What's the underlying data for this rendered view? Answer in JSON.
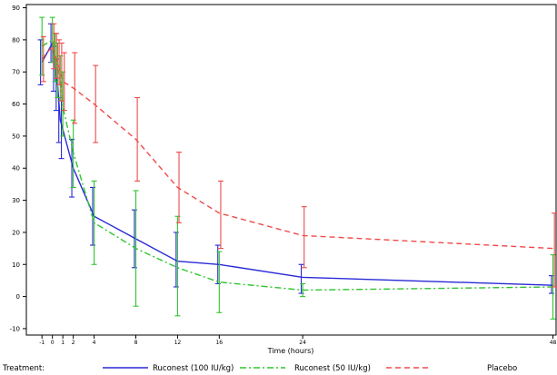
{
  "chart_data": {
    "type": "line",
    "title": "",
    "xlabel": "Time (hours)",
    "ylabel": "",
    "xlim": [
      -2.5,
      48.3
    ],
    "ylim": [
      -12,
      91
    ],
    "x_ticks": [
      -1,
      0,
      1,
      2,
      4,
      8,
      12,
      16,
      24,
      48
    ],
    "x_tick_labels": [
      "-1",
      "0",
      "1",
      "2",
      "4",
      "8",
      "12",
      "16",
      "24",
      "48"
    ],
    "y_ticks": [
      -10,
      0,
      10,
      20,
      30,
      40,
      50,
      60,
      70,
      80,
      90
    ],
    "y_tick_labels": [
      "-10",
      "0",
      "10",
      "20",
      "30",
      "40",
      "50",
      "60",
      "70",
      "80",
      "90"
    ],
    "legend_title": "Treatment:",
    "legend_position": "bottom",
    "series": [
      {
        "name": "Ruconest (100 IU/kg)",
        "color": "#2a2ad6",
        "dash": "solid",
        "x": [
          -1,
          0,
          0.25,
          0.5,
          0.75,
          1,
          2,
          4,
          8,
          12,
          16,
          24,
          48
        ],
        "mean": [
          73,
          79,
          71,
          66,
          55,
          52,
          40,
          25,
          18,
          11,
          10,
          6,
          3.5
        ],
        "lower": [
          66,
          73,
          64,
          58,
          48,
          43,
          31,
          16,
          9,
          3,
          4,
          1,
          1
        ],
        "upper": [
          80,
          85,
          78,
          74,
          62,
          61,
          49,
          34,
          27,
          20,
          16,
          10,
          6.5
        ]
      },
      {
        "name": "Ruconest (50 IU/kg)",
        "color": "#2fc42f",
        "dash": "dashdot",
        "x": [
          -1,
          0,
          0.25,
          0.5,
          0.75,
          1,
          2,
          4,
          8,
          12,
          16,
          24,
          48
        ],
        "mean": [
          78,
          80,
          75,
          71,
          68,
          59,
          45,
          23,
          15,
          9,
          4.5,
          2,
          3
        ],
        "lower": [
          69,
          73,
          67,
          62,
          61,
          50,
          34,
          10,
          -3,
          -6,
          -5,
          0,
          -7
        ],
        "upper": [
          87,
          87,
          82,
          79,
          75,
          70,
          55,
          36,
          33,
          25,
          14,
          4,
          13
        ]
      },
      {
        "name": "Placebo",
        "color": "#f04a4a",
        "dash": "dashed",
        "x": [
          -1,
          0,
          0.25,
          0.5,
          0.75,
          1,
          2,
          4,
          8,
          12,
          16,
          24,
          48
        ],
        "mean": [
          74,
          78,
          75,
          73,
          70,
          67,
          65,
          60,
          49,
          34,
          26,
          19,
          15
        ],
        "lower": [
          67,
          71,
          68,
          66,
          61,
          58,
          54,
          48,
          36,
          23,
          15,
          9,
          3
        ],
        "upper": [
          81,
          85,
          82,
          80,
          79,
          76,
          76,
          72,
          62,
          45,
          36,
          28,
          26
        ]
      }
    ]
  }
}
